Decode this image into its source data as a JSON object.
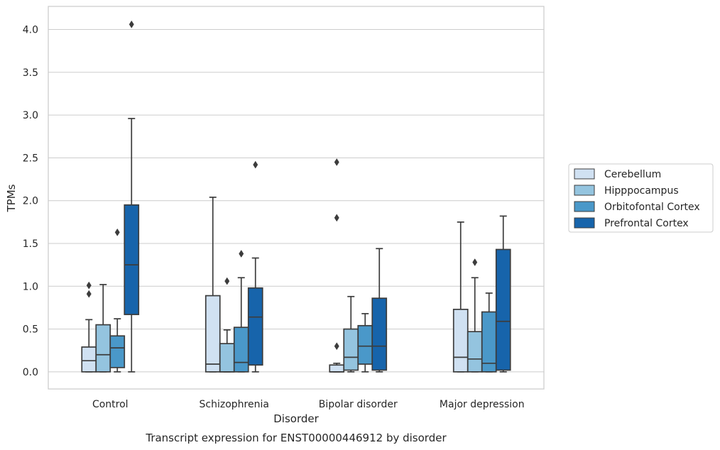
{
  "caption": "Transcript expression for ENST00000446912 by disorder",
  "chart_data": {
    "type": "boxplot",
    "xlabel": "Disorder",
    "ylabel": "TPMs",
    "ylim": [
      -0.2,
      4.27
    ],
    "yticks": [
      "0.0",
      "0.5",
      "1.0",
      "1.5",
      "2.0",
      "2.5",
      "3.0",
      "3.5",
      "4.0"
    ],
    "grid": true,
    "legend_position": "right",
    "categories": [
      "Control",
      "Schizophrenia",
      "Bipolar disorder",
      "Major depression"
    ],
    "series": [
      {
        "name": "Cerebellum",
        "color": "#d0e1f2",
        "boxes": [
          {
            "min": 0,
            "q1": 0,
            "median": 0.13,
            "q3": 0.29,
            "max": 0.61,
            "outliers": [
              0.91,
              1.01
            ]
          },
          {
            "min": 0,
            "q1": 0,
            "median": 0.09,
            "q3": 0.89,
            "max": 2.04,
            "outliers": []
          },
          {
            "min": 0,
            "q1": 0,
            "median": 0.0,
            "q3": 0.08,
            "max": 0.1,
            "outliers": [
              0.3,
              1.8,
              2.45
            ]
          },
          {
            "min": 0,
            "q1": 0,
            "median": 0.17,
            "q3": 0.73,
            "max": 1.75,
            "outliers": []
          }
        ]
      },
      {
        "name": "Hipppocampus",
        "color": "#94c4df",
        "boxes": [
          {
            "min": 0,
            "q1": 0,
            "median": 0.2,
            "q3": 0.55,
            "max": 1.02,
            "outliers": []
          },
          {
            "min": 0,
            "q1": 0,
            "median": 0.0,
            "q3": 0.33,
            "max": 0.49,
            "outliers": [
              1.06
            ]
          },
          {
            "min": 0,
            "q1": 0.02,
            "median": 0.17,
            "q3": 0.5,
            "max": 0.88,
            "outliers": []
          },
          {
            "min": 0,
            "q1": 0,
            "median": 0.15,
            "q3": 0.47,
            "max": 1.1,
            "outliers": [
              1.28
            ]
          }
        ]
      },
      {
        "name": "Orbitofontal Cortex",
        "color": "#4a98c9",
        "boxes": [
          {
            "min": 0,
            "q1": 0.05,
            "median": 0.28,
            "q3": 0.42,
            "max": 0.62,
            "outliers": [
              1.63
            ]
          },
          {
            "min": 0,
            "q1": 0,
            "median": 0.11,
            "q3": 0.52,
            "max": 1.1,
            "outliers": [
              1.38
            ]
          },
          {
            "min": 0,
            "q1": 0.09,
            "median": 0.3,
            "q3": 0.54,
            "max": 0.68,
            "outliers": []
          },
          {
            "min": 0,
            "q1": 0,
            "median": 0.1,
            "q3": 0.7,
            "max": 0.92,
            "outliers": []
          }
        ]
      },
      {
        "name": "Prefrontal Cortex",
        "color": "#1764ab",
        "boxes": [
          {
            "min": 0,
            "q1": 0.67,
            "median": 1.25,
            "q3": 1.95,
            "max": 2.96,
            "outliers": [
              4.06
            ]
          },
          {
            "min": 0,
            "q1": 0.08,
            "median": 0.64,
            "q3": 0.98,
            "max": 1.33,
            "outliers": [
              2.42
            ]
          },
          {
            "min": 0,
            "q1": 0.02,
            "median": 0.3,
            "q3": 0.86,
            "max": 1.44,
            "outliers": []
          },
          {
            "min": 0,
            "q1": 0.02,
            "median": 0.59,
            "q3": 1.43,
            "max": 1.82,
            "outliers": []
          }
        ]
      }
    ]
  }
}
